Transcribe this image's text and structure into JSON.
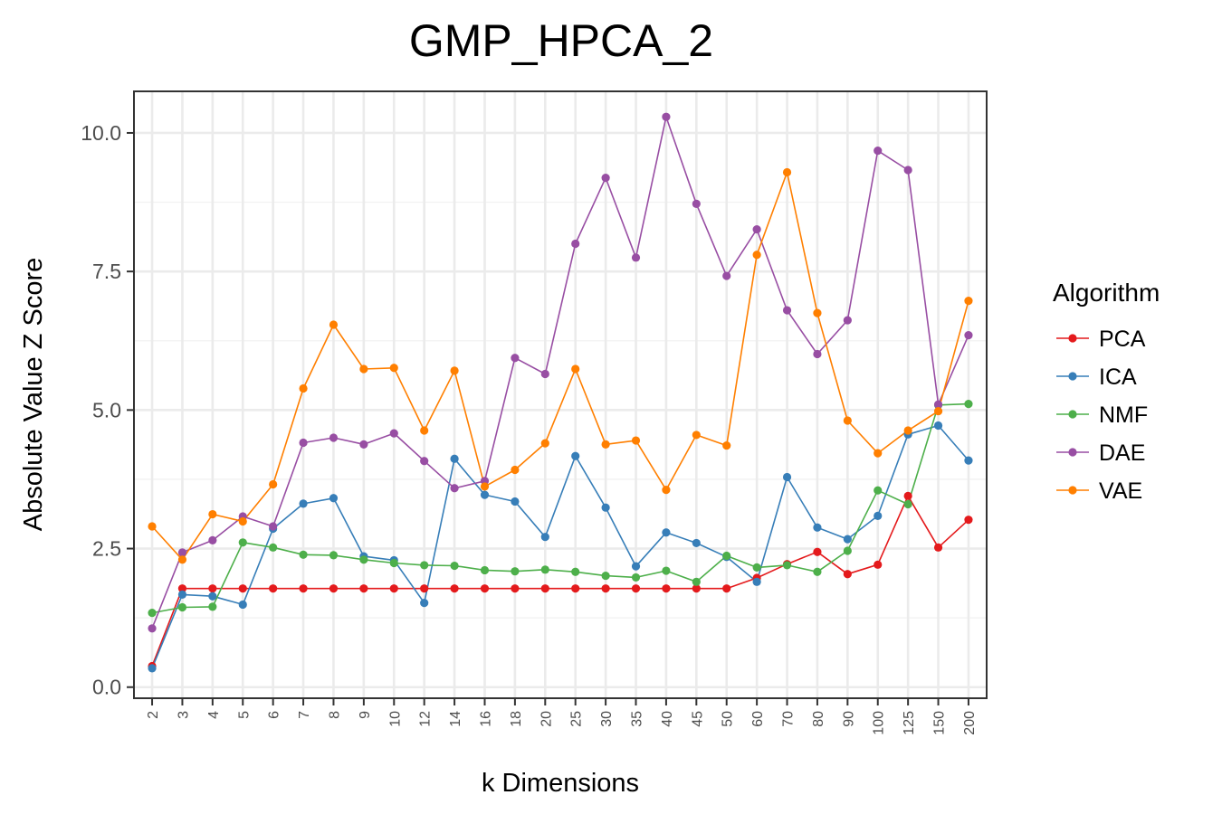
{
  "chart_data": {
    "type": "line",
    "title": "GMP_HPCA_2",
    "xlabel": "k Dimensions",
    "ylabel": "Absolute Value Z Score",
    "ylim": [
      -0.2,
      10.75
    ],
    "yticks": [
      "0.0",
      "2.5",
      "5.0",
      "7.5",
      "10.0"
    ],
    "ytick_values": [
      0,
      2.5,
      5,
      7.5,
      10
    ],
    "grid": true,
    "legend": {
      "title": "Algorithm",
      "position": "right"
    },
    "categories": [
      "2",
      "3",
      "4",
      "5",
      "6",
      "7",
      "8",
      "9",
      "10",
      "12",
      "14",
      "16",
      "18",
      "20",
      "25",
      "30",
      "35",
      "40",
      "45",
      "50",
      "60",
      "70",
      "80",
      "90",
      "100",
      "125",
      "150",
      "200"
    ],
    "series": [
      {
        "name": "PCA",
        "color": "#E41A1C",
        "values": [
          0.38,
          1.78,
          1.78,
          1.78,
          1.78,
          1.78,
          1.78,
          1.78,
          1.78,
          1.78,
          1.78,
          1.78,
          1.78,
          1.78,
          1.78,
          1.78,
          1.78,
          1.78,
          1.78,
          1.78,
          1.97,
          2.22,
          2.44,
          2.04,
          2.21,
          3.45,
          2.52,
          3.02
        ]
      },
      {
        "name": "ICA",
        "color": "#377EB8",
        "values": [
          0.34,
          1.67,
          1.64,
          1.49,
          2.86,
          3.31,
          3.41,
          2.36,
          2.29,
          1.52,
          4.12,
          3.47,
          3.35,
          2.71,
          4.17,
          3.24,
          2.18,
          2.79,
          2.6,
          2.35,
          1.9,
          3.79,
          2.88,
          2.67,
          3.09,
          4.56,
          4.72,
          4.09
        ]
      },
      {
        "name": "NMF",
        "color": "#4DAF4A",
        "values": [
          1.34,
          1.44,
          1.45,
          2.61,
          2.52,
          2.39,
          2.38,
          2.3,
          2.24,
          2.2,
          2.19,
          2.11,
          2.09,
          2.12,
          2.08,
          2.01,
          1.98,
          2.1,
          1.9,
          2.37,
          2.16,
          2.2,
          2.08,
          2.46,
          3.55,
          3.3,
          5.09,
          5.11
        ]
      },
      {
        "name": "DAE",
        "color": "#984EA3",
        "values": [
          1.06,
          2.43,
          2.65,
          3.08,
          2.9,
          4.41,
          4.5,
          4.38,
          4.58,
          4.08,
          3.59,
          3.72,
          5.94,
          5.65,
          8.0,
          9.19,
          7.75,
          10.29,
          8.72,
          7.42,
          8.26,
          6.8,
          6.01,
          6.62,
          9.68,
          9.33,
          5.1,
          6.35
        ]
      },
      {
        "name": "VAE",
        "color": "#FF7F00",
        "values": [
          2.9,
          2.3,
          3.12,
          2.99,
          3.66,
          5.39,
          6.54,
          5.74,
          5.76,
          4.63,
          5.71,
          3.62,
          3.92,
          4.4,
          5.74,
          4.38,
          4.45,
          3.56,
          4.55,
          4.36,
          7.8,
          9.29,
          6.75,
          4.81,
          4.22,
          4.63,
          4.98,
          6.97
        ]
      }
    ]
  }
}
